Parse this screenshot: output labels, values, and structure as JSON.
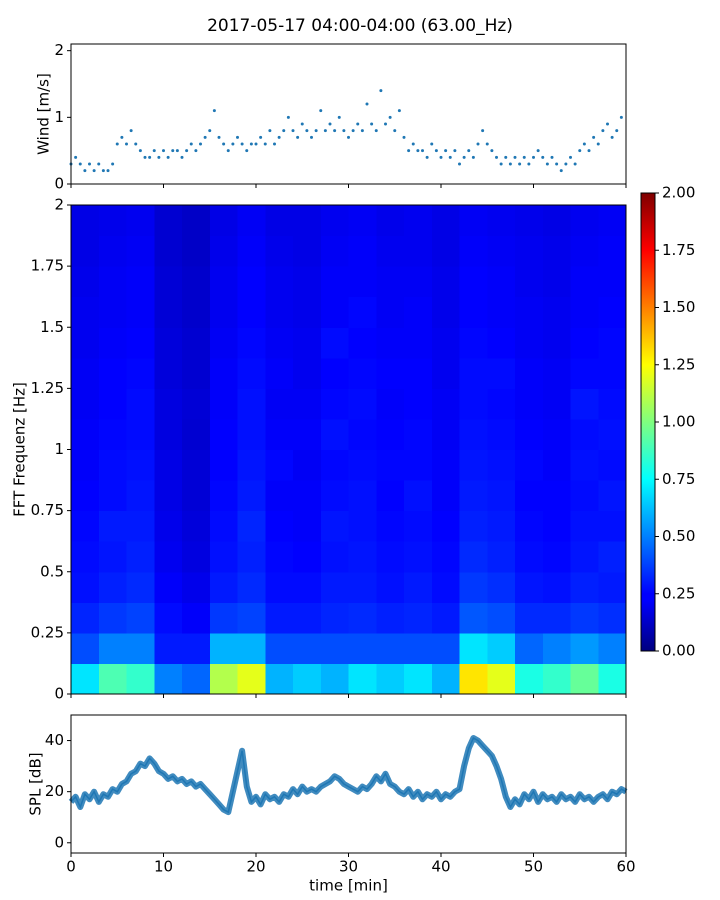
{
  "title": "2017-05-17 04:00-04:00 (63.00_Hz)",
  "chart_data": [
    {
      "type": "scatter",
      "ylabel": "Wind [m/s]",
      "color": "#1f77b4",
      "xlim": [
        0,
        60
      ],
      "xticks": [
        0,
        10,
        20,
        30,
        40,
        50,
        60
      ],
      "ylim": [
        0,
        2.1
      ],
      "yticks": [
        0,
        1,
        2
      ],
      "x": [
        0,
        0.5,
        1,
        1.5,
        2,
        2.5,
        3,
        3.5,
        4,
        4.5,
        5,
        5.5,
        6,
        6.5,
        7,
        7.5,
        8,
        8.5,
        9,
        9.5,
        10,
        10.5,
        11,
        11.5,
        12,
        12.5,
        13,
        13.5,
        14,
        14.5,
        15,
        15.5,
        16,
        16.5,
        17,
        17.5,
        18,
        18.5,
        19,
        19.5,
        20,
        20.5,
        21,
        21.5,
        22,
        22.5,
        23,
        23.5,
        24,
        24.5,
        25,
        25.5,
        26,
        26.5,
        27,
        27.5,
        28,
        28.5,
        29,
        29.5,
        30,
        30.5,
        31,
        31.5,
        32,
        32.5,
        33,
        33.5,
        34,
        34.5,
        35,
        35.5,
        36,
        36.5,
        37,
        37.5,
        38,
        38.5,
        39,
        39.5,
        40,
        40.5,
        41,
        41.5,
        42,
        42.5,
        43,
        43.5,
        44,
        44.5,
        45,
        45.5,
        46,
        46.5,
        47,
        47.5,
        48,
        48.5,
        49,
        49.5,
        50,
        50.5,
        51,
        51.5,
        52,
        52.5,
        53,
        53.5,
        54,
        54.5,
        55,
        55.5,
        56,
        56.5,
        57,
        57.5,
        58,
        58.5,
        59,
        59.5
      ],
      "values": [
        0.3,
        0.4,
        0.3,
        0.2,
        0.3,
        0.2,
        0.3,
        0.2,
        0.2,
        0.3,
        0.6,
        0.7,
        0.6,
        0.8,
        0.6,
        0.5,
        0.4,
        0.4,
        0.5,
        0.4,
        0.5,
        0.4,
        0.5,
        0.5,
        0.4,
        0.5,
        0.6,
        0.5,
        0.6,
        0.7,
        0.8,
        1.1,
        0.7,
        0.6,
        0.5,
        0.6,
        0.7,
        0.6,
        0.5,
        0.6,
        0.6,
        0.7,
        0.6,
        0.8,
        0.6,
        0.7,
        0.8,
        1.0,
        0.8,
        0.7,
        0.9,
        0.8,
        0.7,
        0.8,
        1.1,
        0.8,
        0.9,
        0.8,
        1.0,
        0.8,
        0.7,
        0.8,
        0.9,
        0.8,
        1.2,
        0.9,
        0.8,
        1.4,
        0.9,
        1.0,
        0.8,
        1.1,
        0.7,
        0.5,
        0.6,
        0.5,
        0.5,
        0.4,
        0.6,
        0.5,
        0.4,
        0.5,
        0.4,
        0.5,
        0.3,
        0.4,
        0.5,
        0.4,
        0.6,
        0.8,
        0.6,
        0.5,
        0.4,
        0.3,
        0.4,
        0.3,
        0.4,
        0.3,
        0.4,
        0.3,
        0.4,
        0.5,
        0.4,
        0.3,
        0.4,
        0.3,
        0.2,
        0.3,
        0.4,
        0.3,
        0.5,
        0.6,
        0.5,
        0.7,
        0.6,
        0.8,
        0.9,
        0.7,
        0.8,
        1.0
      ]
    },
    {
      "type": "heatmap",
      "ylabel": "FFT Frequenz [Hz]",
      "colormap": "jet",
      "xlim": [
        0,
        60
      ],
      "xticks": [
        0,
        10,
        20,
        30,
        40,
        50,
        60
      ],
      "ylim": [
        0,
        2
      ],
      "yticks": [
        0,
        0.25,
        0.5,
        0.75,
        1,
        1.25,
        1.5,
        1.75,
        2
      ],
      "clim": [
        0,
        2
      ],
      "cticks": [
        {
          "value": 0,
          "label": "0.00"
        },
        {
          "value": 0.25,
          "label": "0.25"
        },
        {
          "value": 0.5,
          "label": "0.50"
        },
        {
          "value": 0.75,
          "label": "0.75"
        },
        {
          "value": 1,
          "label": "1.00"
        },
        {
          "value": 1.25,
          "label": "1.25"
        },
        {
          "value": 1.5,
          "label": "1.50"
        },
        {
          "value": 1.75,
          "label": "1.75"
        },
        {
          "value": 2,
          "label": "2.00"
        }
      ],
      "x_edges": [
        0,
        3,
        6,
        9,
        12,
        15,
        18,
        21,
        24,
        27,
        30,
        33,
        36,
        39,
        42,
        45,
        48,
        51,
        54,
        57,
        60
      ],
      "y_edges": [
        0,
        0.125,
        0.25,
        0.375,
        0.5,
        0.625,
        0.75,
        0.875,
        1,
        1.125,
        1.25,
        1.375,
        1.5,
        1.625,
        1.75,
        1.875,
        2
      ],
      "values": [
        [
          0.7,
          0.9,
          0.85,
          0.5,
          0.45,
          1.1,
          1.2,
          0.6,
          0.65,
          0.6,
          0.7,
          0.65,
          0.7,
          0.6,
          1.3,
          1.2,
          0.8,
          0.85,
          0.95,
          0.8
        ],
        [
          0.4,
          0.5,
          0.5,
          0.3,
          0.3,
          0.6,
          0.6,
          0.4,
          0.4,
          0.4,
          0.4,
          0.4,
          0.4,
          0.4,
          0.7,
          0.65,
          0.45,
          0.5,
          0.55,
          0.5
        ],
        [
          0.32,
          0.36,
          0.38,
          0.27,
          0.24,
          0.36,
          0.38,
          0.3,
          0.3,
          0.32,
          0.33,
          0.31,
          0.32,
          0.3,
          0.42,
          0.4,
          0.33,
          0.33,
          0.36,
          0.34
        ],
        [
          0.28,
          0.31,
          0.33,
          0.24,
          0.21,
          0.3,
          0.33,
          0.27,
          0.27,
          0.3,
          0.3,
          0.28,
          0.3,
          0.27,
          0.36,
          0.34,
          0.29,
          0.28,
          0.31,
          0.3
        ],
        [
          0.27,
          0.29,
          0.31,
          0.22,
          0.19,
          0.28,
          0.31,
          0.26,
          0.25,
          0.28,
          0.29,
          0.27,
          0.28,
          0.26,
          0.33,
          0.31,
          0.27,
          0.26,
          0.29,
          0.31
        ],
        [
          0.26,
          0.3,
          0.3,
          0.21,
          0.18,
          0.27,
          0.32,
          0.25,
          0.24,
          0.29,
          0.28,
          0.26,
          0.27,
          0.25,
          0.31,
          0.3,
          0.26,
          0.25,
          0.28,
          0.28
        ],
        [
          0.25,
          0.27,
          0.29,
          0.2,
          0.17,
          0.26,
          0.3,
          0.24,
          0.24,
          0.27,
          0.28,
          0.25,
          0.28,
          0.24,
          0.3,
          0.29,
          0.25,
          0.25,
          0.27,
          0.29
        ],
        [
          0.24,
          0.27,
          0.28,
          0.2,
          0.17,
          0.25,
          0.29,
          0.26,
          0.23,
          0.26,
          0.27,
          0.26,
          0.26,
          0.24,
          0.29,
          0.28,
          0.26,
          0.24,
          0.28,
          0.27
        ],
        [
          0.24,
          0.26,
          0.27,
          0.19,
          0.16,
          0.25,
          0.28,
          0.24,
          0.24,
          0.28,
          0.26,
          0.25,
          0.26,
          0.23,
          0.28,
          0.27,
          0.25,
          0.24,
          0.27,
          0.28
        ],
        [
          0.23,
          0.25,
          0.27,
          0.19,
          0.17,
          0.24,
          0.28,
          0.23,
          0.23,
          0.26,
          0.27,
          0.24,
          0.25,
          0.23,
          0.27,
          0.26,
          0.24,
          0.23,
          0.29,
          0.27
        ],
        [
          0.23,
          0.25,
          0.26,
          0.18,
          0.16,
          0.24,
          0.27,
          0.24,
          0.22,
          0.25,
          0.26,
          0.25,
          0.25,
          0.22,
          0.27,
          0.27,
          0.24,
          0.23,
          0.26,
          0.26
        ],
        [
          0.22,
          0.24,
          0.25,
          0.18,
          0.16,
          0.23,
          0.26,
          0.23,
          0.22,
          0.27,
          0.25,
          0.24,
          0.24,
          0.22,
          0.26,
          0.25,
          0.23,
          0.22,
          0.25,
          0.26
        ],
        [
          0.22,
          0.23,
          0.24,
          0.17,
          0.15,
          0.22,
          0.25,
          0.22,
          0.21,
          0.24,
          0.26,
          0.23,
          0.24,
          0.21,
          0.25,
          0.24,
          0.23,
          0.22,
          0.24,
          0.25
        ],
        [
          0.21,
          0.23,
          0.24,
          0.17,
          0.15,
          0.22,
          0.25,
          0.22,
          0.21,
          0.24,
          0.24,
          0.23,
          0.23,
          0.21,
          0.25,
          0.24,
          0.22,
          0.21,
          0.24,
          0.24
        ],
        [
          0.2,
          0.22,
          0.23,
          0.16,
          0.14,
          0.21,
          0.24,
          0.21,
          0.2,
          0.23,
          0.24,
          0.22,
          0.22,
          0.2,
          0.24,
          0.23,
          0.22,
          0.21,
          0.23,
          0.24
        ],
        [
          0.2,
          0.21,
          0.22,
          0.16,
          0.14,
          0.2,
          0.23,
          0.2,
          0.2,
          0.22,
          0.23,
          0.21,
          0.22,
          0.2,
          0.23,
          0.22,
          0.21,
          0.2,
          0.22,
          0.23
        ]
      ]
    },
    {
      "type": "line",
      "ylabel": "SPL [dB]",
      "xlabel": "time [min]",
      "color": "#1f77b4",
      "xlim": [
        0,
        60
      ],
      "xticks": [
        0,
        10,
        20,
        30,
        40,
        50,
        60
      ],
      "ylim": [
        -4,
        50
      ],
      "yticks": [
        0,
        20,
        40
      ],
      "x": [
        0,
        0.5,
        1,
        1.5,
        2,
        2.5,
        3,
        3.5,
        4,
        4.5,
        5,
        5.5,
        6,
        6.5,
        7,
        7.5,
        8,
        8.5,
        9,
        9.5,
        10,
        10.5,
        11,
        11.5,
        12,
        12.5,
        13,
        13.5,
        14,
        14.5,
        15,
        15.5,
        16,
        16.5,
        17,
        17.5,
        18,
        18.5,
        19,
        19.5,
        20,
        20.5,
        21,
        21.5,
        22,
        22.5,
        23,
        23.5,
        24,
        24.5,
        25,
        25.5,
        26,
        26.5,
        27,
        27.5,
        28,
        28.5,
        29,
        29.5,
        30,
        30.5,
        31,
        31.5,
        32,
        32.5,
        33,
        33.5,
        34,
        34.5,
        35,
        35.5,
        36,
        36.5,
        37,
        37.5,
        38,
        38.5,
        39,
        39.5,
        40,
        40.5,
        41,
        41.5,
        42,
        42.5,
        43,
        43.5,
        44,
        44.5,
        45,
        45.5,
        46,
        46.5,
        47,
        47.5,
        48,
        48.5,
        49,
        49.5,
        50,
        50.5,
        51,
        51.5,
        52,
        52.5,
        53,
        53.5,
        54,
        54.5,
        55,
        55.5,
        56,
        56.5,
        57,
        57.5,
        58,
        58.5,
        59,
        59.5,
        60
      ],
      "values": [
        16,
        18,
        14,
        19,
        17,
        20,
        16,
        19,
        18,
        21,
        20,
        23,
        24,
        27,
        28,
        31,
        30,
        33,
        31,
        28,
        27,
        25,
        26,
        24,
        25,
        23,
        24,
        22,
        23,
        21,
        19,
        17,
        15,
        13,
        12,
        20,
        28,
        36,
        22,
        16,
        18,
        15,
        19,
        17,
        18,
        16,
        19,
        18,
        21,
        19,
        22,
        20,
        21,
        20,
        22,
        23,
        24,
        26,
        25,
        23,
        22,
        21,
        20,
        22,
        21,
        23,
        26,
        24,
        27,
        23,
        22,
        20,
        19,
        21,
        18,
        20,
        17,
        19,
        18,
        20,
        17,
        19,
        18,
        20,
        21,
        30,
        37,
        41,
        40,
        38,
        36,
        34,
        30,
        25,
        18,
        14,
        17,
        15,
        19,
        17,
        20,
        16,
        19,
        17,
        18,
        16,
        19,
        17,
        18,
        16,
        19,
        17,
        18,
        16,
        18,
        19,
        17,
        20,
        19,
        21,
        20
      ]
    }
  ]
}
